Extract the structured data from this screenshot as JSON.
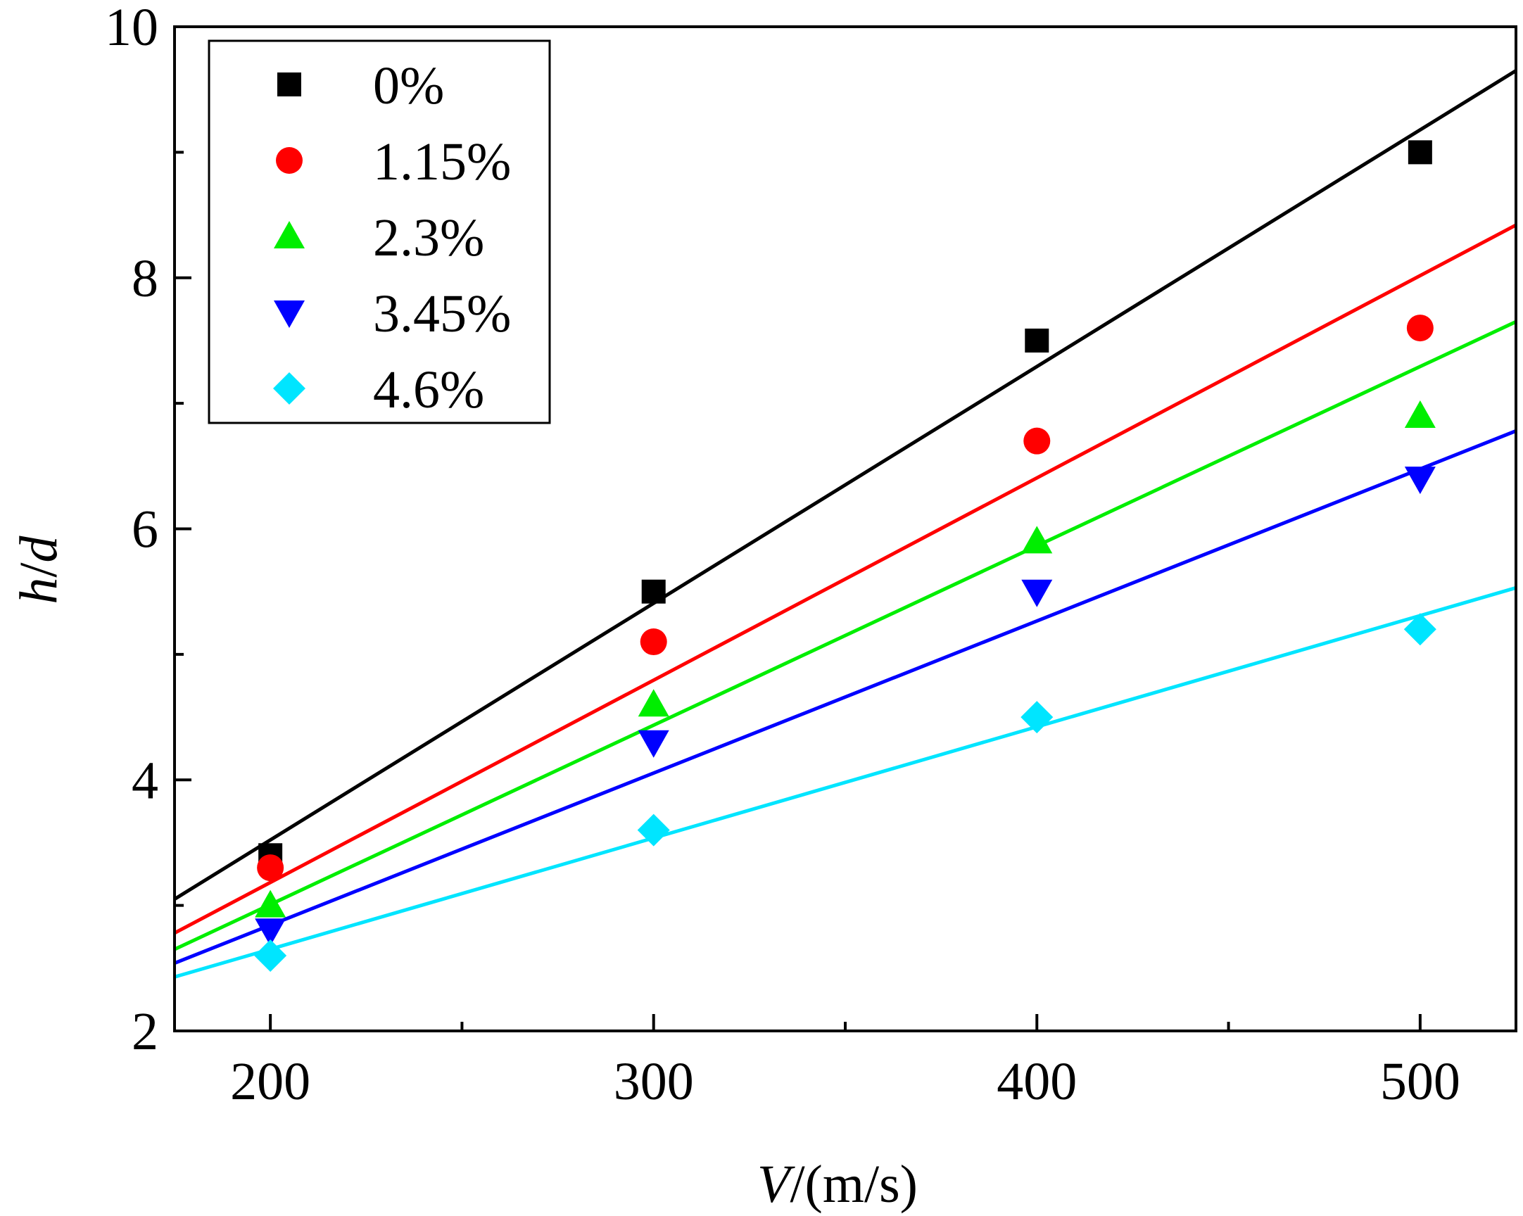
{
  "chart_data": {
    "type": "scatter",
    "title": "",
    "xlabel": {
      "var": "V",
      "unit": "/(m/s)"
    },
    "ylabel": {
      "var_h": "h",
      "sep": "/",
      "var_d": "d"
    },
    "xlim": [
      175,
      525
    ],
    "ylim": [
      2,
      10
    ],
    "xticks": [
      200,
      300,
      400,
      500
    ],
    "xminor": [
      250,
      350,
      450
    ],
    "yticks": [
      2,
      4,
      6,
      8,
      10
    ],
    "yminor": [
      3,
      5,
      7,
      9
    ],
    "x": [
      200,
      300,
      400,
      500
    ],
    "legend_position": "top-left",
    "series": [
      {
        "name": "0%",
        "marker": "square",
        "color": "#000000",
        "values": [
          3.4,
          5.5,
          7.5,
          9.0
        ],
        "fit": [
          3.05,
          9.65
        ]
      },
      {
        "name": "1.15%",
        "marker": "circle",
        "color": "#ff0000",
        "values": [
          3.3,
          5.1,
          6.7,
          7.6
        ],
        "fit": [
          2.78,
          8.42
        ]
      },
      {
        "name": "2.3%",
        "marker": "triangle-up",
        "color": "#00ee00",
        "values": [
          3.0,
          4.6,
          5.9,
          6.9
        ],
        "fit": [
          2.65,
          7.65
        ]
      },
      {
        "name": "3.45%",
        "marker": "triangle-down",
        "color": "#0000ff",
        "values": [
          2.8,
          4.3,
          5.5,
          6.4
        ],
        "fit": [
          2.54,
          6.78
        ]
      },
      {
        "name": "4.6%",
        "marker": "diamond",
        "color": "#00e5ff",
        "values": [
          2.6,
          3.6,
          4.5,
          5.2
        ],
        "fit": [
          2.43,
          5.53
        ]
      }
    ]
  }
}
